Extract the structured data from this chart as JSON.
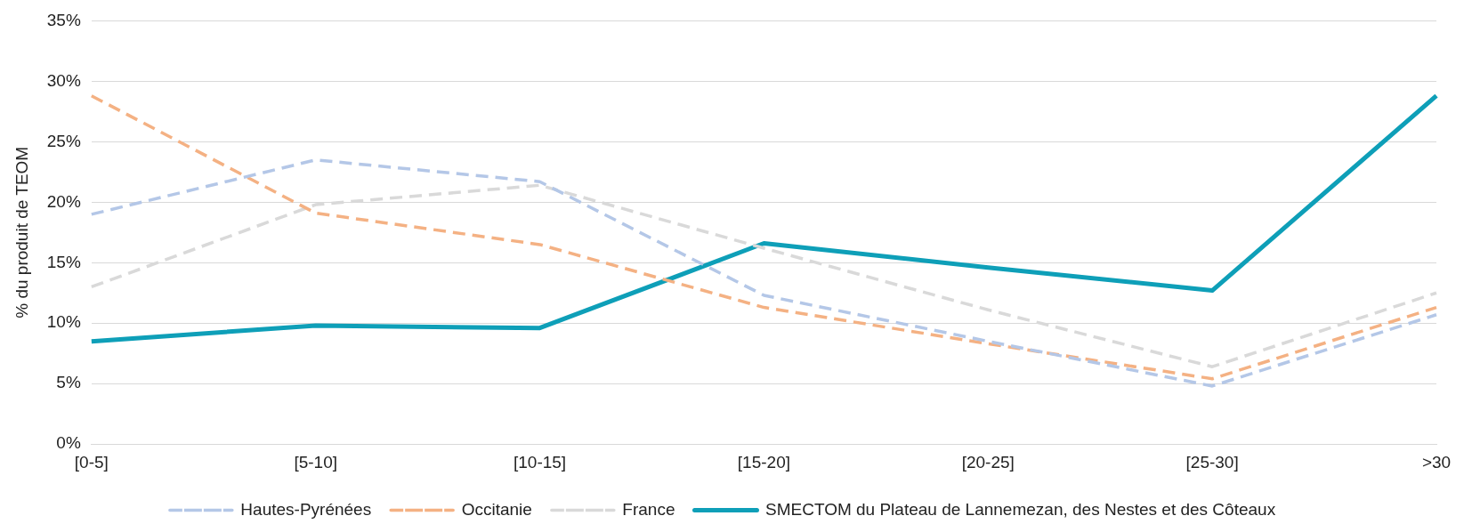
{
  "chart_data": {
    "type": "line",
    "ylabel": "% du produit de TEOM",
    "categories": [
      "[0-5]",
      "[5-10]",
      "[10-15]",
      "[15-20]",
      "[20-25]",
      "[25-30]",
      ">30"
    ],
    "series": [
      {
        "name": "Hautes-Pyrénées",
        "color": "#b4c7e7",
        "line_style": "dashed",
        "values": [
          19.0,
          23.5,
          21.7,
          12.3,
          8.5,
          4.8,
          10.7
        ]
      },
      {
        "name": "Occitanie",
        "color": "#f4b183",
        "line_style": "dashed",
        "values": [
          28.8,
          19.1,
          16.5,
          11.3,
          8.3,
          5.4,
          11.3
        ]
      },
      {
        "name": "France",
        "color": "#d9d9d9",
        "line_style": "dashed",
        "values": [
          13.0,
          19.8,
          21.4,
          16.2,
          11.1,
          6.4,
          12.5
        ]
      },
      {
        "name": "SMECTOM du Plateau de Lannemezan, des Nestes et des Côteaux",
        "color": "#0e9fb8",
        "line_style": "solid",
        "values": [
          8.5,
          9.8,
          9.6,
          16.6,
          14.6,
          12.7,
          28.8
        ]
      }
    ],
    "ylim": [
      0,
      35
    ],
    "yticks": [
      {
        "value": 0,
        "label": "0%"
      },
      {
        "value": 5,
        "label": "5%"
      },
      {
        "value": 10,
        "label": "10%"
      },
      {
        "value": 15,
        "label": "15%"
      },
      {
        "value": 20,
        "label": "20%"
      },
      {
        "value": 25,
        "label": "25%"
      },
      {
        "value": 30,
        "label": "30%"
      },
      {
        "value": 35,
        "label": "35%"
      }
    ],
    "grid": "y",
    "legend": "bottom",
    "marker": "none"
  }
}
